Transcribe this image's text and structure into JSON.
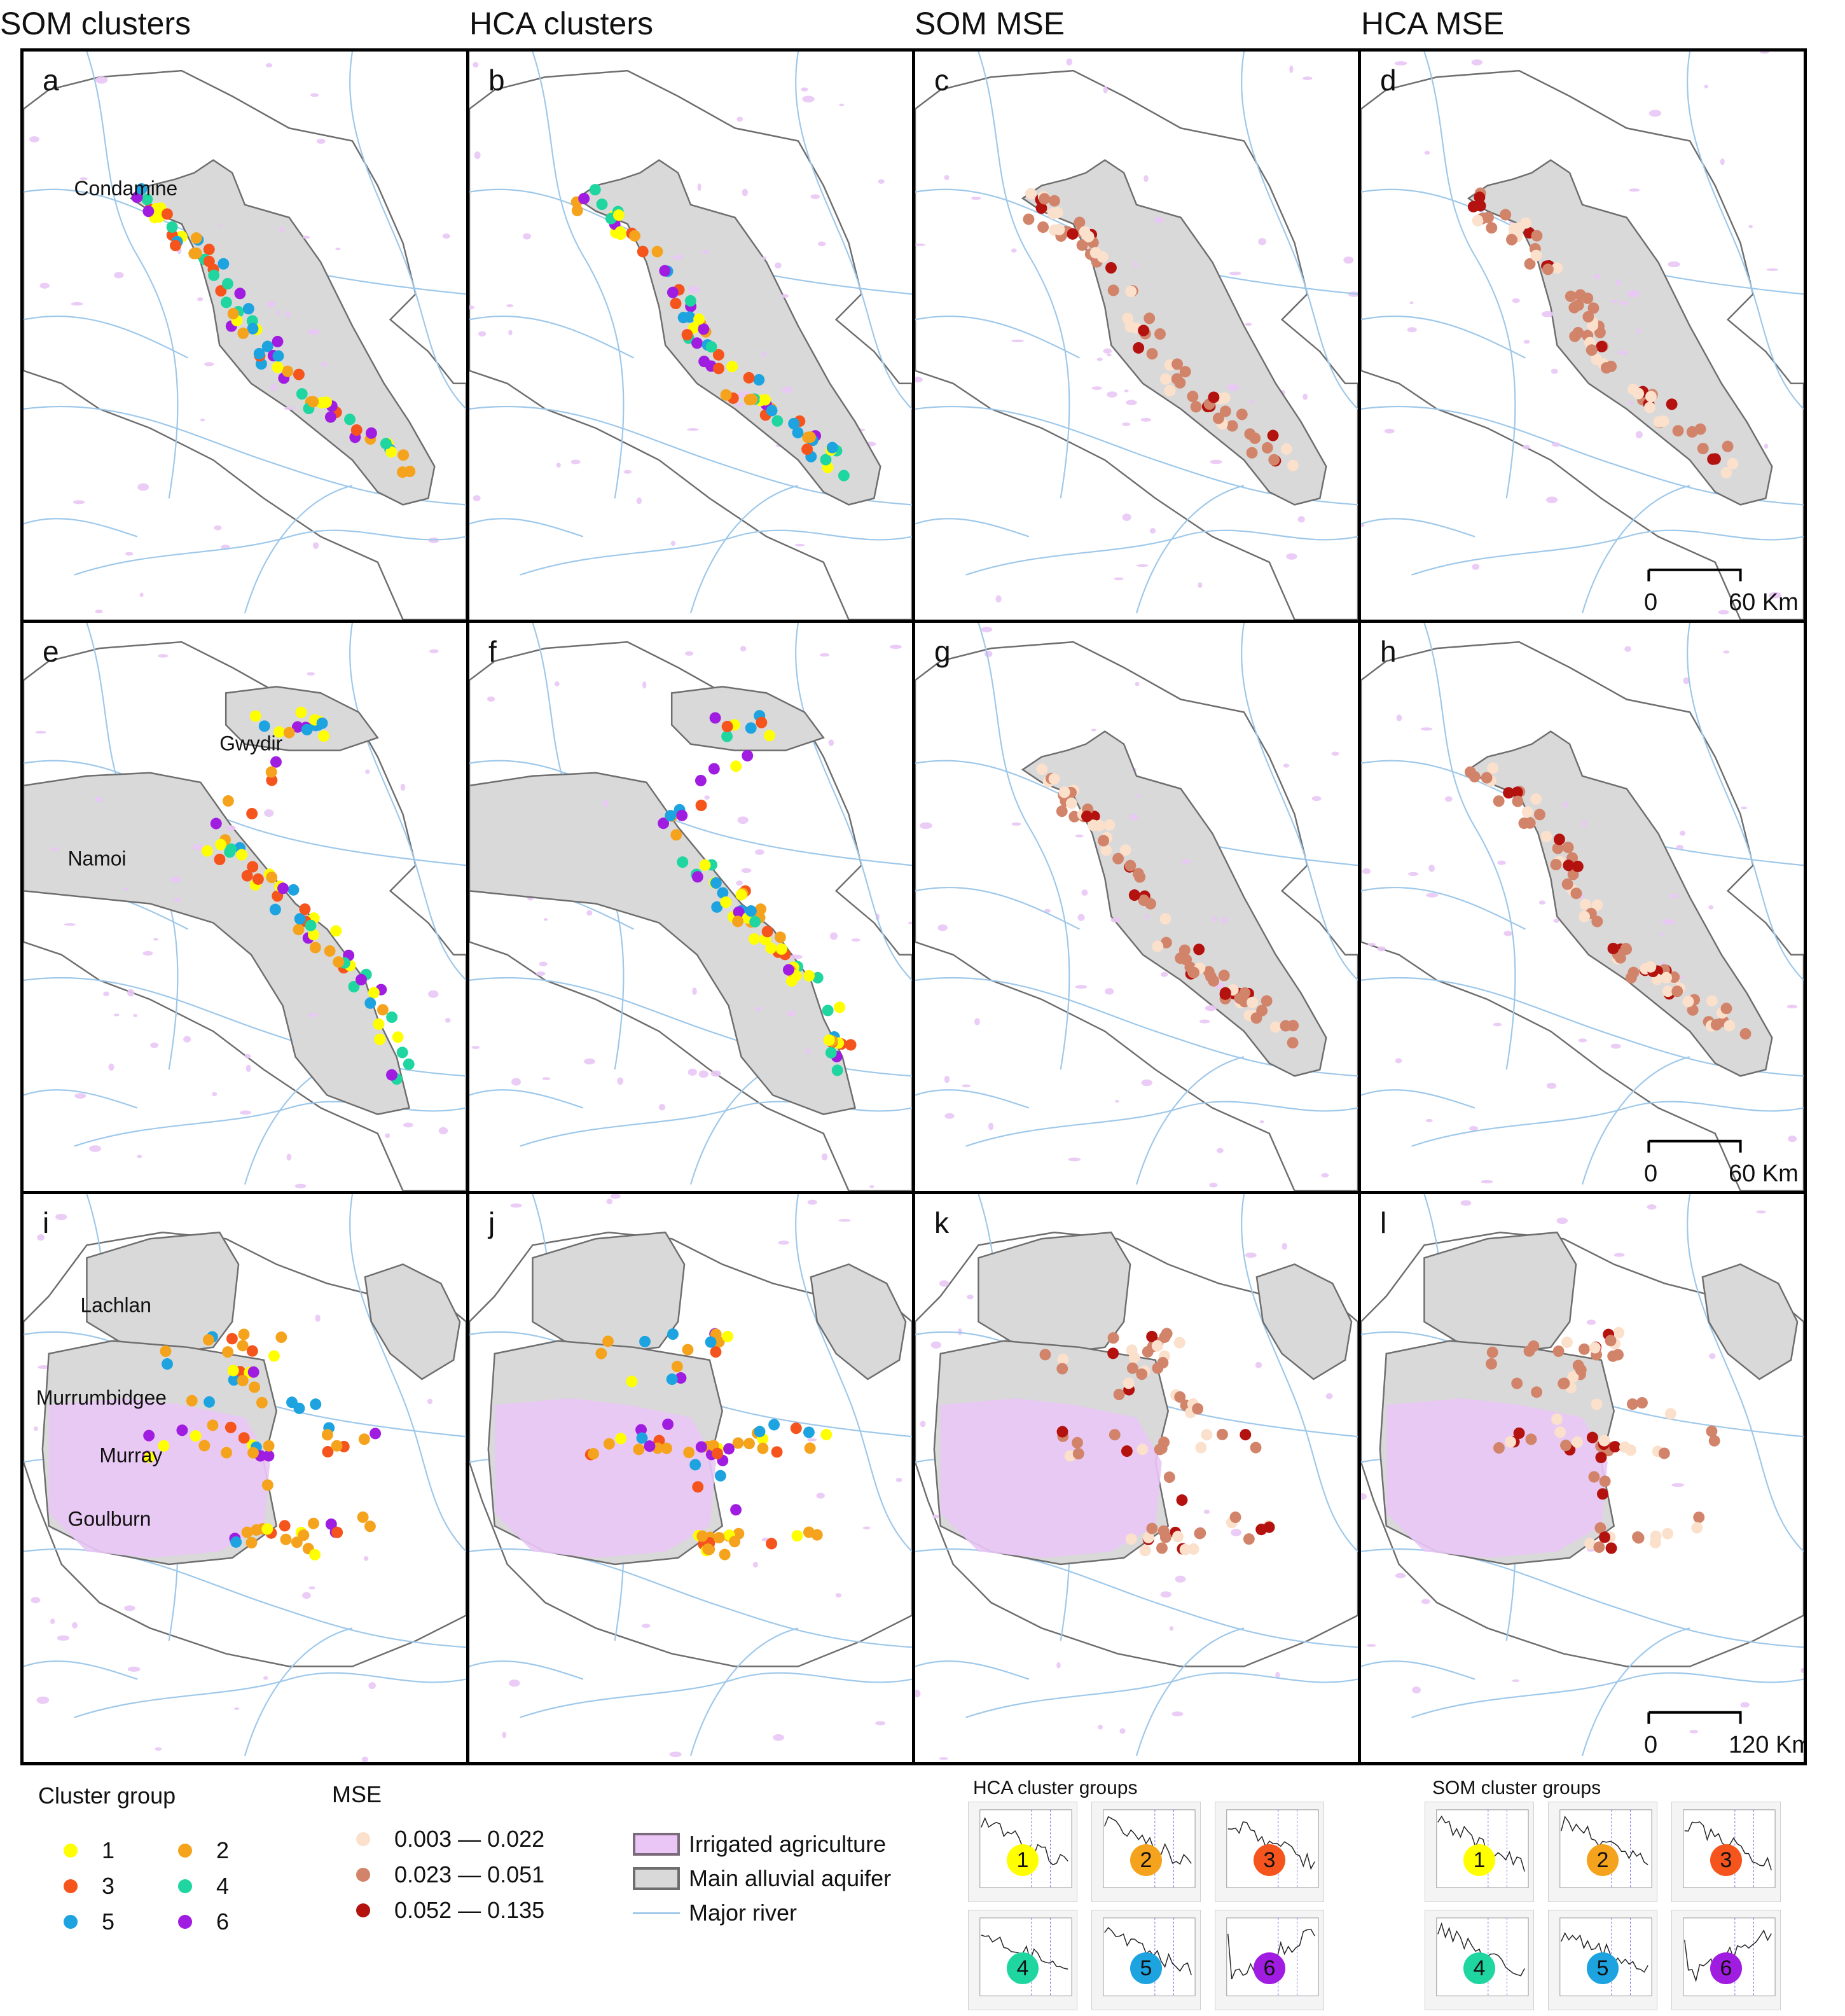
{
  "column_titles": [
    "SOM clusters",
    "HCA clusters",
    "SOM MSE",
    "HCA MSE"
  ],
  "panel_letters": [
    "a",
    "b",
    "c",
    "d",
    "e",
    "f",
    "g",
    "h",
    "i",
    "j",
    "k",
    "l"
  ],
  "region_labels": {
    "a": [
      "Condamine"
    ],
    "e": [
      "Gwydir",
      "Namoi"
    ],
    "i": [
      "Lachlan",
      "Murrumbidgee",
      "Murray",
      "Goulburn"
    ]
  },
  "scalebars": [
    {
      "row": 0,
      "start_label": "0",
      "end_label": "60 Km"
    },
    {
      "row": 1,
      "start_label": "0",
      "end_label": "60 Km"
    },
    {
      "row": 2,
      "start_label": "0",
      "end_label": "120 Km"
    }
  ],
  "colors": {
    "cluster_1": "#ffff00",
    "cluster_2": "#f5a31c",
    "cluster_3": "#f5541c",
    "cluster_4": "#1fd6a0",
    "cluster_5": "#1ca3e0",
    "cluster_6": "#a01ce0",
    "mse_low": "#fbe0cc",
    "mse_mid": "#d2846a",
    "mse_high": "#b3120f",
    "aquifer_fill": "#d9d9d9",
    "aquifer_edge": "#6e6e6e",
    "irrigated": "#e9c6f5",
    "river": "#9ec8ea"
  },
  "legend": {
    "cluster_title": "Cluster group",
    "cluster_items": [
      {
        "label": "1",
        "color": "#ffff00"
      },
      {
        "label": "2",
        "color": "#f5a31c"
      },
      {
        "label": "3",
        "color": "#f5541c"
      },
      {
        "label": "4",
        "color": "#1fd6a0"
      },
      {
        "label": "5",
        "color": "#1ca3e0"
      },
      {
        "label": "6",
        "color": "#a01ce0"
      }
    ],
    "mse_title": "MSE",
    "mse_items": [
      {
        "label": "0.003 — 0.022",
        "color": "#fbe0cc"
      },
      {
        "label": "0.023 — 0.051",
        "color": "#d2846a"
      },
      {
        "label": "0.052 —  0.135",
        "color": "#b3120f"
      }
    ],
    "layer_items": [
      {
        "label": "Irrigated agriculture",
        "icon": "purple-swatch"
      },
      {
        "label": "Main alluvial aquifer",
        "icon": "gray-swatch"
      },
      {
        "label": "Major river",
        "icon": "blue-line"
      }
    ]
  },
  "insets": {
    "hca_title": "HCA cluster groups",
    "som_title": "SOM cluster groups",
    "badges": [
      "1",
      "2",
      "3",
      "4",
      "5",
      "6"
    ]
  }
}
